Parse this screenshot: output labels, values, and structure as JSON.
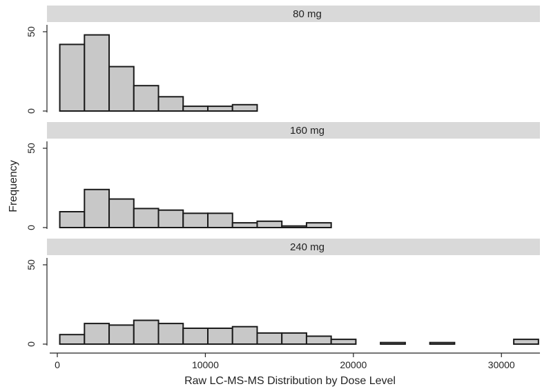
{
  "chart_data": {
    "type": "bar",
    "xlabel": "Raw LC-MS-MS Distribution by Dose Level",
    "ylabel": "Frequency",
    "xlim": [
      -700,
      32600
    ],
    "ylim": [
      0,
      55
    ],
    "x_ticks": [
      "0",
      "10000",
      "20000",
      "30000"
    ],
    "x_tick_values": [
      0,
      10000,
      20000,
      30000
    ],
    "y_ticks": [
      "0",
      "50"
    ],
    "y_tick_values": [
      0,
      50
    ],
    "bin_width": 1667,
    "panels": [
      {
        "label": "80 mg",
        "bins": [
          {
            "start": 167,
            "value": 42
          },
          {
            "start": 1833,
            "value": 48
          },
          {
            "start": 3500,
            "value": 28
          },
          {
            "start": 5167,
            "value": 16
          },
          {
            "start": 6833,
            "value": 9
          },
          {
            "start": 8500,
            "value": 3
          },
          {
            "start": 10167,
            "value": 3
          },
          {
            "start": 11833,
            "value": 4
          }
        ]
      },
      {
        "label": "160 mg",
        "bins": [
          {
            "start": 167,
            "value": 10
          },
          {
            "start": 1833,
            "value": 24
          },
          {
            "start": 3500,
            "value": 18
          },
          {
            "start": 5167,
            "value": 12
          },
          {
            "start": 6833,
            "value": 11
          },
          {
            "start": 8500,
            "value": 9
          },
          {
            "start": 10167,
            "value": 9
          },
          {
            "start": 11833,
            "value": 3
          },
          {
            "start": 13500,
            "value": 4
          },
          {
            "start": 15167,
            "value": 1
          },
          {
            "start": 16833,
            "value": 3
          }
        ]
      },
      {
        "label": "240 mg",
        "bins": [
          {
            "start": 167,
            "value": 6
          },
          {
            "start": 1833,
            "value": 13
          },
          {
            "start": 3500,
            "value": 12
          },
          {
            "start": 5167,
            "value": 15
          },
          {
            "start": 6833,
            "value": 13
          },
          {
            "start": 8500,
            "value": 10
          },
          {
            "start": 10167,
            "value": 10
          },
          {
            "start": 11833,
            "value": 11
          },
          {
            "start": 13500,
            "value": 7
          },
          {
            "start": 15167,
            "value": 7
          },
          {
            "start": 16833,
            "value": 5
          },
          {
            "start": 18500,
            "value": 3
          },
          {
            "start": 21833,
            "value": 1
          },
          {
            "start": 25167,
            "value": 1
          },
          {
            "start": 30833,
            "value": 3
          }
        ]
      }
    ]
  }
}
